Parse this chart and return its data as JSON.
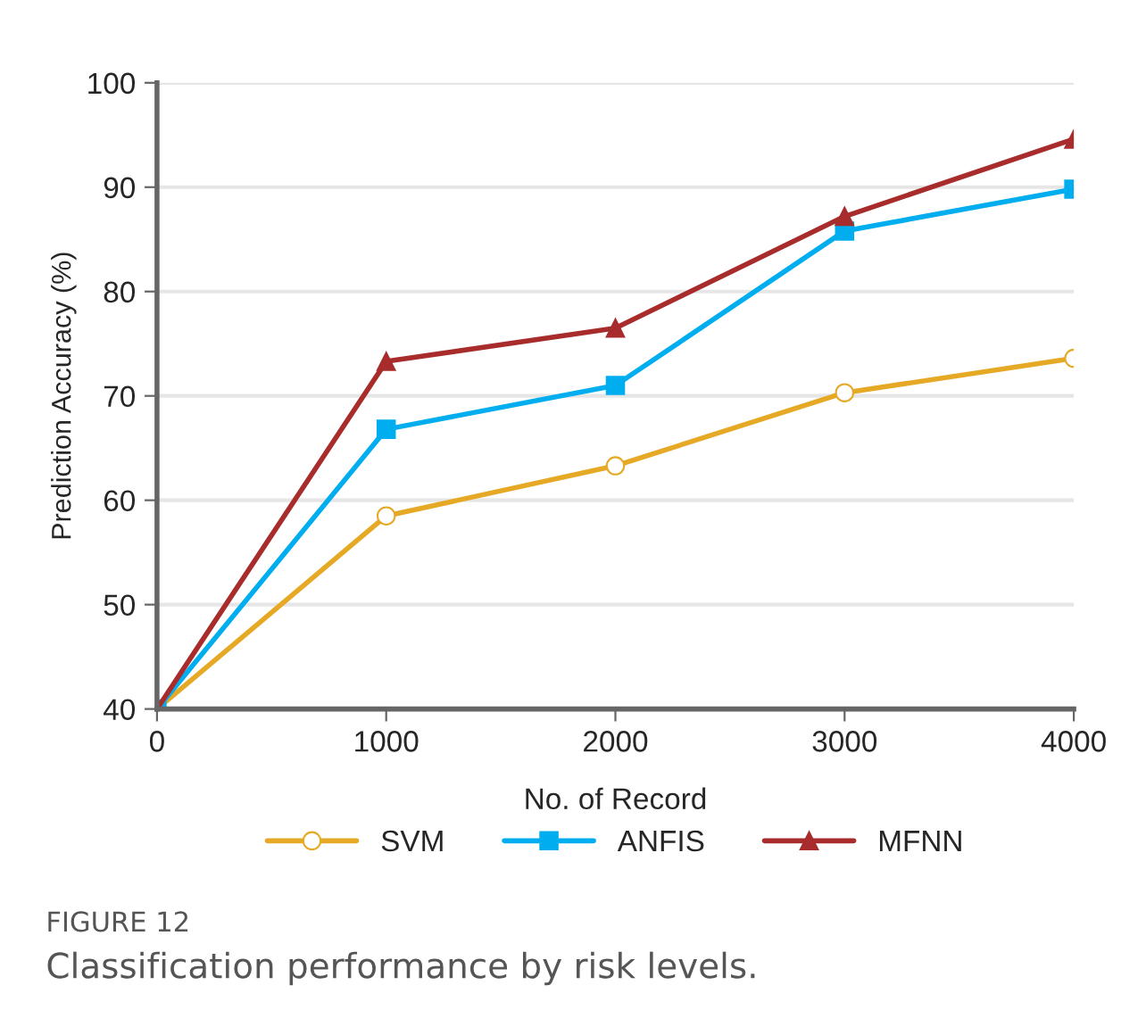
{
  "chart_data": {
    "type": "line",
    "xlabel": "No. of Record",
    "ylabel": "Prediction Accuracy (%)",
    "x": [
      0,
      1000,
      2000,
      3000,
      4000
    ],
    "series": [
      {
        "name": "SVM",
        "color": "#e6a925",
        "marker": "circle",
        "values": [
          40,
          58.5,
          63.3,
          70.3,
          73.6
        ]
      },
      {
        "name": "ANFIS",
        "color": "#00aeef",
        "marker": "square",
        "values": [
          40,
          66.8,
          71,
          85.8,
          89.8
        ]
      },
      {
        "name": "MFNN",
        "color": "#a82c2c",
        "marker": "triangle",
        "values": [
          40,
          73.3,
          76.5,
          87.2,
          94.6
        ]
      }
    ],
    "xlim": [
      0,
      4000
    ],
    "xticks": [
      0,
      1000,
      2000,
      3000,
      4000
    ],
    "ylim": [
      40,
      100
    ],
    "yticks": [
      40,
      50,
      60,
      70,
      80,
      90,
      100
    ],
    "grid": "y",
    "legend": "bottom",
    "annotations": [
      "FIGURE 12",
      "Classification performance by risk levels."
    ]
  }
}
